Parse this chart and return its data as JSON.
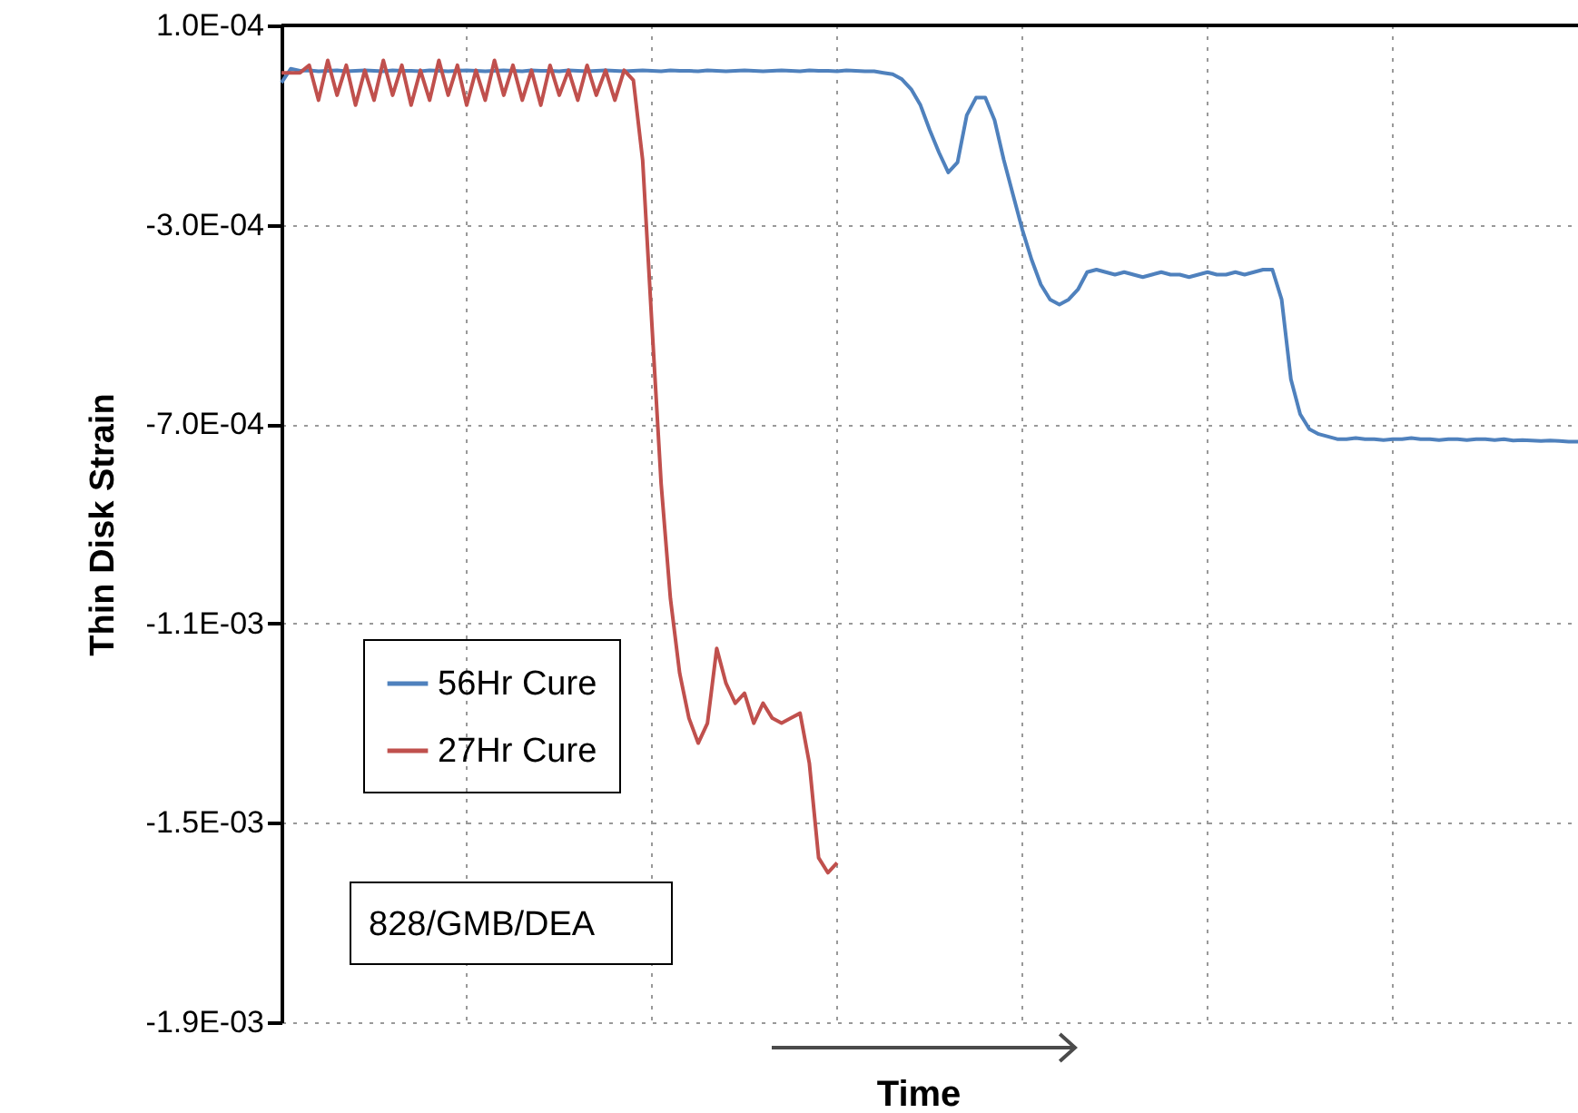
{
  "chart_data": {
    "type": "line",
    "xlabel": "Time",
    "ylabel": "Thin Disk Strain",
    "categories": [
      null,
      null,
      null,
      null,
      null,
      null,
      null,
      null,
      null,
      null,
      null,
      null,
      null,
      null,
      null,
      null,
      null,
      null,
      null,
      null,
      null,
      null,
      null,
      null,
      null,
      null,
      null,
      null,
      null,
      null,
      null,
      null,
      null,
      null,
      null,
      null,
      null,
      null,
      null,
      null,
      null,
      null,
      null,
      null,
      null,
      null,
      null,
      null,
      null,
      null,
      null,
      null,
      null,
      null,
      null,
      null,
      null,
      null,
      null,
      null,
      null,
      null,
      null,
      null,
      null,
      null,
      null,
      null,
      null,
      null,
      null,
      null,
      null,
      null,
      null,
      null,
      null,
      null,
      null,
      null,
      null,
      null,
      null,
      null,
      null,
      null,
      null,
      null,
      null,
      null,
      null,
      null,
      null,
      null,
      null,
      null,
      null,
      null,
      null,
      null,
      null,
      null,
      null,
      null,
      null,
      null,
      null,
      null,
      null,
      null,
      null,
      null,
      null,
      null,
      null,
      null,
      null,
      null,
      null,
      null,
      null,
      null,
      null,
      null,
      null,
      null,
      null,
      null,
      null,
      null,
      null,
      null,
      null,
      null,
      null,
      null,
      null,
      null,
      null,
      null,
      null
    ],
    "ylim": [
      -0.0019,
      0.0001
    ],
    "yticks": [
      {
        "value": 0.0001,
        "label": "1.0E-04"
      },
      {
        "value": -0.0003,
        "label": "-3.0E-04"
      },
      {
        "value": -0.0007,
        "label": "-7.0E-04"
      },
      {
        "value": -0.0011,
        "label": "-1.1E-03"
      },
      {
        "value": -0.0015,
        "label": "-1.5E-03"
      },
      {
        "value": -0.0019,
        "label": "-1.9E-03"
      }
    ],
    "grid": true,
    "legend": "bottom left",
    "line_style": "solid",
    "annotations": [
      "828/GMB/DEA"
    ],
    "series": [
      {
        "name": "56Hr Cure",
        "color": "#4f81bd",
        "values": [
          -1.5e-05,
          1.3e-05,
          9e-06,
          1e-05,
          8e-06,
          9e-06,
          1e-05,
          8e-06,
          9e-06,
          1e-05,
          9e-06,
          8e-06,
          1e-05,
          9e-06,
          9e-06,
          8e-06,
          1e-05,
          9e-06,
          8e-06,
          9e-06,
          1e-05,
          9e-06,
          8e-06,
          9e-06,
          1e-05,
          9e-06,
          8e-06,
          1e-05,
          9e-06,
          9e-06,
          8e-06,
          1e-05,
          9e-06,
          8e-06,
          9e-06,
          1e-05,
          9e-06,
          8e-06,
          9e-06,
          1e-05,
          9e-06,
          8e-06,
          1e-05,
          9e-06,
          9e-06,
          8e-06,
          1e-05,
          9e-06,
          8e-06,
          9e-06,
          1e-05,
          9e-06,
          8e-06,
          9e-06,
          1e-05,
          9e-06,
          8e-06,
          1e-05,
          9e-06,
          9e-06,
          8e-06,
          1e-05,
          9e-06,
          8e-06,
          8e-06,
          5e-06,
          2e-06,
          -8e-06,
          -2.8e-05,
          -6e-05,
          -0.00011,
          -0.000155,
          -0.000195,
          -0.000175,
          -8e-05,
          -4.5e-05,
          -4.5e-05,
          -9e-05,
          -0.00017,
          -0.00024,
          -0.00031,
          -0.00037,
          -0.00042,
          -0.00045,
          -0.00046,
          -0.00045,
          -0.00043,
          -0.000395,
          -0.00039,
          -0.000395,
          -0.0004,
          -0.000395,
          -0.0004,
          -0.000405,
          -0.0004,
          -0.000395,
          -0.0004,
          -0.0004,
          -0.000405,
          -0.0004,
          -0.000395,
          -0.0004,
          -0.0004,
          -0.000395,
          -0.0004,
          -0.000395,
          -0.00039,
          -0.00039,
          -0.00045,
          -0.00061,
          -0.00068,
          -0.00071,
          -0.00072,
          -0.000725,
          -0.00073,
          -0.00073,
          -0.000728,
          -0.00073,
          -0.00073,
          -0.000732,
          -0.00073,
          -0.00073,
          -0.000728,
          -0.00073,
          -0.00073,
          -0.000732,
          -0.00073,
          -0.00073,
          -0.000732,
          -0.00073,
          -0.00073,
          -0.000732,
          -0.00073,
          -0.000733,
          -0.000732,
          -0.000733,
          -0.000734,
          -0.000733,
          -0.000734,
          -0.000735,
          -0.000735
        ]
      },
      {
        "name": "27Hr Cure",
        "color": "#c0504d",
        "values": [
          5e-06,
          5e-06,
          5e-06,
          2e-05,
          -5e-05,
          3e-05,
          -4e-05,
          2e-05,
          -6e-05,
          1e-05,
          -5e-05,
          3e-05,
          -4e-05,
          2e-05,
          -6e-05,
          1e-05,
          -5e-05,
          3e-05,
          -4e-05,
          2e-05,
          -6e-05,
          1e-05,
          -5e-05,
          3e-05,
          -4e-05,
          2e-05,
          -5e-05,
          1e-05,
          -6e-05,
          2e-05,
          -4e-05,
          1e-05,
          -5e-05,
          2e-05,
          -4e-05,
          1e-05,
          -5e-05,
          1e-05,
          -1e-05,
          -0.00017,
          -0.0005,
          -0.00082,
          -0.00105,
          -0.0012,
          -0.00129,
          -0.00134,
          -0.0013,
          -0.00115,
          -0.00122,
          -0.00126,
          -0.00124,
          -0.0013,
          -0.00126,
          -0.00129,
          -0.0013,
          -0.00129,
          -0.00128,
          -0.00138,
          -0.00157,
          -0.0016,
          -0.00158,
          null,
          null,
          null,
          null,
          null,
          null,
          null,
          null,
          null,
          null,
          null,
          null,
          null,
          null,
          null,
          null,
          null,
          null,
          null,
          null,
          null,
          null,
          null,
          null,
          null,
          null,
          null,
          null,
          null,
          null,
          null,
          null,
          null,
          null,
          null,
          null,
          null,
          null,
          null,
          null,
          null,
          null,
          null,
          null,
          null,
          null,
          null,
          null,
          null,
          null,
          null,
          null,
          null,
          null,
          null,
          null,
          null,
          null,
          null,
          null,
          null,
          null,
          null,
          null,
          null,
          null,
          null,
          null,
          null,
          null,
          null,
          null,
          null,
          null,
          null,
          null,
          null,
          null,
          null,
          null
        ]
      }
    ]
  }
}
